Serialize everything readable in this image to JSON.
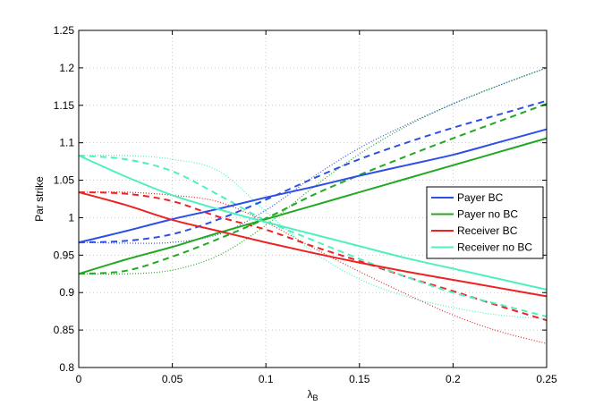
{
  "chart_data": {
    "type": "line",
    "title": "",
    "xlabel_main": "λ",
    "xlabel_sub": "B",
    "ylabel": "Par strike",
    "xlim": [
      0,
      0.25
    ],
    "ylim": [
      0.8,
      1.25
    ],
    "x_ticks": [
      0,
      0.05,
      0.1,
      0.15,
      0.2,
      0.25
    ],
    "x_tick_labels": [
      "0",
      "0.05",
      "0.1",
      "0.15",
      "0.2",
      "0.25"
    ],
    "y_ticks": [
      0.8,
      0.85,
      0.9,
      0.95,
      1.0,
      1.05,
      1.1,
      1.15,
      1.2,
      1.25
    ],
    "y_tick_labels": [
      "0.8",
      "0.85",
      "0.9",
      "0.95",
      "1",
      "1.05",
      "1.1",
      "1.15",
      "1.2",
      "1.25"
    ],
    "grid": true,
    "legend_position": "right",
    "x": [
      0,
      0.025,
      0.05,
      0.075,
      0.1,
      0.125,
      0.15,
      0.175,
      0.2,
      0.225,
      0.25
    ],
    "series": [
      {
        "name": "Payer BC",
        "color": "#2d4fe6",
        "style": "solid",
        "in_legend": true,
        "values": [
          0.967,
          0.982,
          0.998,
          1.012,
          1.027,
          1.041,
          1.056,
          1.07,
          1.084,
          1.101,
          1.118
        ]
      },
      {
        "name": "Payer no BC",
        "color": "#22a822",
        "style": "solid",
        "in_legend": true,
        "values": [
          0.925,
          0.944,
          0.961,
          0.98,
          0.998,
          1.016,
          1.034,
          1.052,
          1.07,
          1.088,
          1.106
        ]
      },
      {
        "name": "Receiver BC",
        "color": "#ee2222",
        "style": "solid",
        "in_legend": true,
        "values": [
          1.034,
          1.017,
          0.997,
          0.982,
          0.967,
          0.953,
          0.94,
          0.928,
          0.917,
          0.906,
          0.895
        ]
      },
      {
        "name": "Receiver no BC",
        "color": "#4ff0c0",
        "style": "solid",
        "in_legend": true,
        "values": [
          1.083,
          1.055,
          1.03,
          1.011,
          0.994,
          0.978,
          0.962,
          0.946,
          0.932,
          0.918,
          0.904
        ]
      },
      {
        "color": "#2d4fe6",
        "style": "dashed",
        "in_legend": false,
        "values": [
          0.967,
          0.969,
          0.978,
          0.998,
          1.024,
          1.052,
          1.078,
          1.1,
          1.12,
          1.138,
          1.156
        ]
      },
      {
        "color": "#22a822",
        "style": "dashed",
        "in_legend": false,
        "values": [
          0.925,
          0.929,
          0.948,
          0.972,
          0.999,
          1.03,
          1.057,
          1.082,
          1.106,
          1.129,
          1.152
        ]
      },
      {
        "color": "#ee2222",
        "style": "dashed",
        "in_legend": false,
        "values": [
          1.034,
          1.032,
          1.022,
          1.001,
          0.984,
          0.962,
          0.942,
          0.921,
          0.902,
          0.882,
          0.863
        ]
      },
      {
        "color": "#4ff0c0",
        "style": "dashed",
        "in_legend": false,
        "values": [
          1.083,
          1.078,
          1.062,
          1.03,
          0.996,
          0.97,
          0.945,
          0.921,
          0.9,
          0.884,
          0.868
        ]
      },
      {
        "color": "#2d4fe6",
        "style": "dotted",
        "in_legend": false,
        "values": [
          0.967,
          0.966,
          0.967,
          0.978,
          1.01,
          1.054,
          1.093,
          1.124,
          1.152,
          1.177,
          1.2
        ]
      },
      {
        "color": "#22a822",
        "style": "dotted",
        "in_legend": false,
        "values": [
          0.925,
          0.925,
          0.93,
          0.95,
          0.99,
          1.04,
          1.085,
          1.122,
          1.152,
          1.177,
          1.2
        ]
      },
      {
        "color": "#ee2222",
        "style": "dotted",
        "in_legend": false,
        "values": [
          1.034,
          1.034,
          1.03,
          1.021,
          0.994,
          0.96,
          0.928,
          0.898,
          0.87,
          0.848,
          0.832
        ]
      },
      {
        "color": "#4ff0c0",
        "style": "dotted",
        "in_legend": false,
        "values": [
          1.083,
          1.083,
          1.078,
          1.062,
          1.008,
          0.955,
          0.918,
          0.895,
          0.88,
          0.87,
          0.865
        ]
      }
    ]
  }
}
